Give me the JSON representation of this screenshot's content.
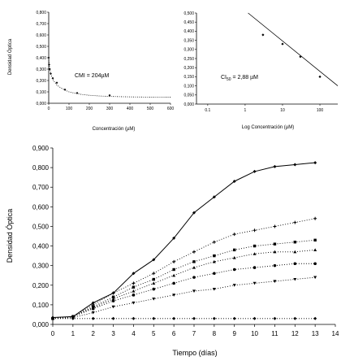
{
  "chart_data": [
    {
      "type": "scatter",
      "xlabel": "Concentración (µM)",
      "ylabel": "Densidad Óptica",
      "xlim": [
        0,
        600
      ],
      "ylim": [
        0,
        0.8
      ],
      "xticks": [
        "0",
        "100",
        "200",
        "300",
        "400",
        "500",
        "600"
      ],
      "yticks": [
        "0,000",
        "0,100",
        "0,200",
        "0,300",
        "0,400",
        "0,500",
        "0,600",
        "0,700",
        "0,800"
      ],
      "annotation": "CMI = 204µM",
      "points": {
        "x": [
          0,
          2,
          5,
          10,
          20,
          40,
          80,
          140,
          300
        ],
        "y": [
          0.4,
          0.34,
          0.3,
          0.26,
          0.22,
          0.18,
          0.12,
          0.09,
          0.07
        ]
      },
      "fit": {
        "x": [
          0,
          5,
          10,
          20,
          40,
          60,
          80,
          100,
          130,
          160,
          200,
          250,
          300,
          400,
          500,
          600
        ],
        "y": [
          0.4,
          0.3,
          0.26,
          0.21,
          0.16,
          0.135,
          0.115,
          0.1,
          0.088,
          0.078,
          0.07,
          0.064,
          0.06,
          0.056,
          0.054,
          0.053
        ]
      }
    },
    {
      "type": "scatter",
      "xlabel": "Log Concentración (µM)",
      "xscale": "log",
      "xlim": [
        0.05,
        300
      ],
      "ylim": [
        0,
        0.5
      ],
      "xticks": [
        "0.1",
        "1",
        "10",
        "100"
      ],
      "yticks": [
        "0,000",
        "0,050",
        "0,100",
        "0,150",
        "0,200",
        "0,250",
        "0,300",
        "0,350",
        "0,400",
        "0,450",
        "0,500"
      ],
      "annotation": "CI50 = 2,88 µM",
      "points": {
        "x": [
          3,
          10,
          30,
          100
        ],
        "y": [
          0.38,
          0.33,
          0.26,
          0.15
        ]
      },
      "fit": {
        "x": [
          1.2,
          300
        ],
        "y": [
          0.5,
          0.1
        ]
      }
    },
    {
      "type": "line",
      "xlabel": "Tiempo (días)",
      "ylabel": "Densidad Óptica",
      "xlim": [
        0,
        14
      ],
      "ylim": [
        0,
        0.9
      ],
      "xticks": [
        "0",
        "1",
        "2",
        "3",
        "4",
        "5",
        "6",
        "7",
        "8",
        "9",
        "10",
        "11",
        "12",
        "13",
        "14"
      ],
      "yticks": [
        "0,000",
        "0,100",
        "0,200",
        "0,300",
        "0,400",
        "0,500",
        "0,600",
        "0,700",
        "0,800",
        "0,900"
      ],
      "x": [
        0,
        1,
        2,
        3,
        4,
        5,
        6,
        7,
        8,
        9,
        10,
        11,
        12,
        13
      ],
      "series": [
        {
          "marker": "diamond",
          "style": "solid",
          "values": [
            0.035,
            0.04,
            0.11,
            0.16,
            0.26,
            0.33,
            0.44,
            0.57,
            0.65,
            0.73,
            0.78,
            0.805,
            0.815,
            0.825
          ]
        },
        {
          "marker": "plus",
          "style": "dotted",
          "values": [
            0.03,
            0.04,
            0.1,
            0.16,
            0.21,
            0.26,
            0.32,
            0.37,
            0.42,
            0.46,
            0.48,
            0.5,
            0.52,
            0.54
          ]
        },
        {
          "marker": "square",
          "style": "dotted",
          "values": [
            0.03,
            0.04,
            0.09,
            0.14,
            0.19,
            0.23,
            0.28,
            0.32,
            0.35,
            0.38,
            0.4,
            0.41,
            0.42,
            0.43
          ]
        },
        {
          "marker": "triangle",
          "style": "dotted",
          "values": [
            0.03,
            0.04,
            0.085,
            0.13,
            0.17,
            0.21,
            0.25,
            0.29,
            0.32,
            0.34,
            0.36,
            0.37,
            0.37,
            0.38
          ]
        },
        {
          "marker": "circle",
          "style": "dotted",
          "values": [
            0.03,
            0.04,
            0.08,
            0.12,
            0.15,
            0.18,
            0.21,
            0.24,
            0.26,
            0.28,
            0.29,
            0.3,
            0.31,
            0.31
          ]
        },
        {
          "marker": "triangle-down",
          "style": "dotted",
          "values": [
            0.03,
            0.035,
            0.06,
            0.09,
            0.11,
            0.13,
            0.15,
            0.17,
            0.18,
            0.2,
            0.21,
            0.22,
            0.23,
            0.24
          ]
        },
        {
          "marker": "diamond",
          "style": "dotted",
          "values": [
            0.03,
            0.03,
            0.03,
            0.03,
            0.03,
            0.03,
            0.03,
            0.03,
            0.03,
            0.03,
            0.03,
            0.03,
            0.03,
            0.03
          ]
        }
      ]
    }
  ]
}
